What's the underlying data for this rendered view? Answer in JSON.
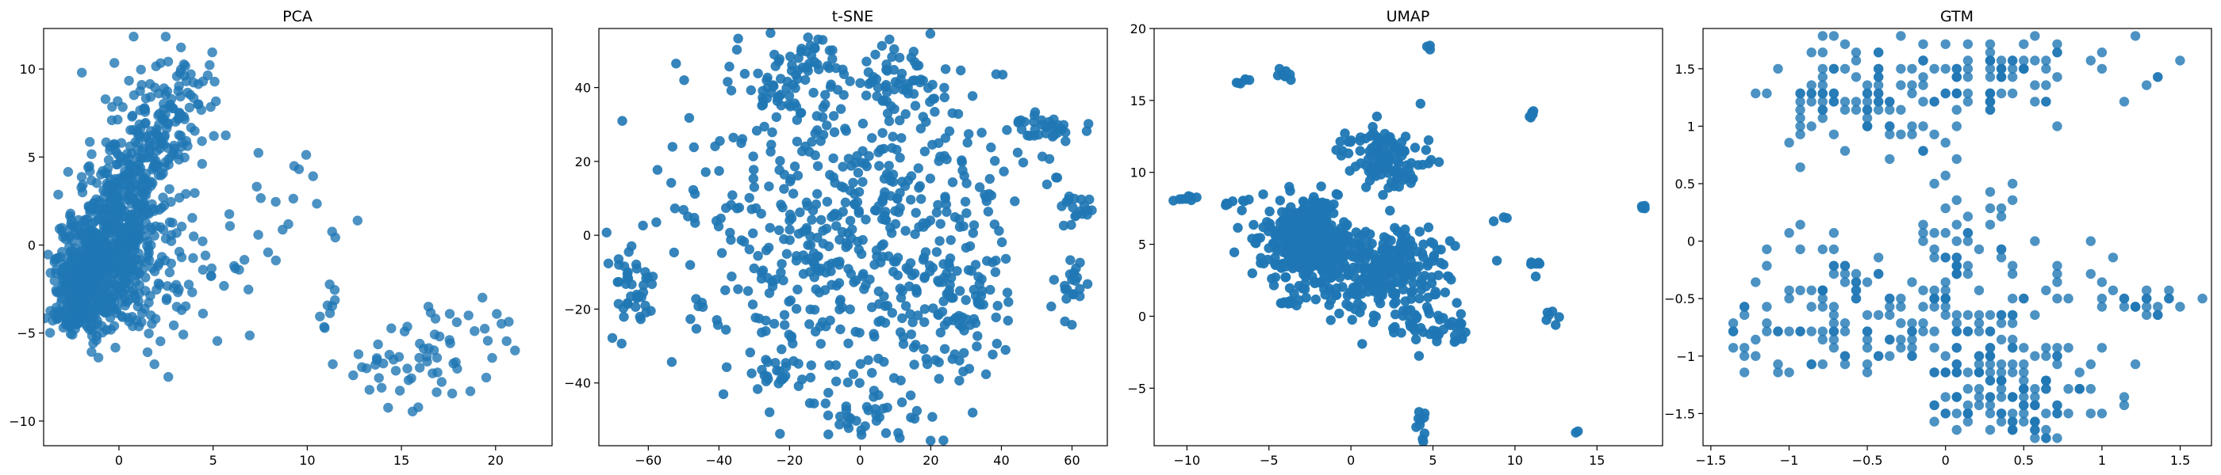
{
  "figure": {
    "point_color": "#1f77b4"
  },
  "chart_data": [
    {
      "type": "scatter",
      "title": "PCA",
      "xlabel": "",
      "ylabel": "",
      "xlim": [
        -4,
        23
      ],
      "ylim": [
        -11.4,
        12.3
      ],
      "xticks": [
        0,
        5,
        10,
        15,
        20
      ],
      "yticks": [
        -10,
        -5,
        0,
        5,
        10
      ],
      "point_opacity": 0.8,
      "clusters": [
        {
          "x": -1.5,
          "y": -1.5,
          "sx": 0.9,
          "sy": 1.6,
          "n": 520
        },
        {
          "x": 0.2,
          "y": 1.5,
          "sx": 1.0,
          "sy": 2.0,
          "n": 260
        },
        {
          "x": 1.5,
          "y": 4.5,
          "sx": 1.1,
          "sy": 2.0,
          "n": 150
        },
        {
          "x": 3.0,
          "y": 8.0,
          "sx": 1.3,
          "sy": 1.6,
          "n": 80
        },
        {
          "x": -2.5,
          "y": -4.0,
          "sx": 0.6,
          "sy": 0.5,
          "n": 60
        },
        {
          "x": 1.5,
          "y": -2.0,
          "sx": 1.4,
          "sy": 2.0,
          "n": 70
        },
        {
          "x": 5.0,
          "y": -1.0,
          "sx": 2.0,
          "sy": 2.0,
          "n": 30
        },
        {
          "x": 9.5,
          "y": 3.5,
          "sx": 1.5,
          "sy": 2.0,
          "n": 14
        },
        {
          "x": 11.0,
          "y": -4.5,
          "sx": 0.6,
          "sy": 1.0,
          "n": 10
        },
        {
          "x": 14.5,
          "y": -7.5,
          "sx": 1.3,
          "sy": 1.3,
          "n": 30
        },
        {
          "x": 17.5,
          "y": -5.5,
          "sx": 1.3,
          "sy": 1.6,
          "n": 28
        },
        {
          "x": 20.5,
          "y": -4.5,
          "sx": 0.7,
          "sy": 1.0,
          "n": 8
        }
      ]
    },
    {
      "type": "scatter",
      "title": "t-SNE",
      "xlabel": "",
      "ylabel": "",
      "xlim": [
        -74,
        70
      ],
      "ylim": [
        -57,
        56
      ],
      "xticks": [
        -60,
        -40,
        -20,
        0,
        20,
        40,
        60
      ],
      "yticks": [
        -40,
        -20,
        0,
        20,
        40
      ],
      "point_opacity": 0.9,
      "clusters": [
        {
          "x": -2,
          "y": 0,
          "sx": 24,
          "sy": 23,
          "n": 560
        },
        {
          "x": -22,
          "y": 40,
          "sx": 8,
          "sy": 6,
          "n": 50
        },
        {
          "x": 12,
          "y": 40,
          "sx": 7,
          "sy": 6,
          "n": 45
        },
        {
          "x": -15,
          "y": 48,
          "sx": 5,
          "sy": 2,
          "n": 20
        },
        {
          "x": 53,
          "y": 29,
          "sx": 6,
          "sy": 2,
          "n": 35
        },
        {
          "x": 62,
          "y": 8,
          "sx": 2,
          "sy": 2,
          "n": 15
        },
        {
          "x": -65,
          "y": -15,
          "sx": 3,
          "sy": 5,
          "n": 40
        },
        {
          "x": 60,
          "y": -15,
          "sx": 3,
          "sy": 5,
          "n": 20
        },
        {
          "x": 0,
          "y": -48,
          "sx": 8,
          "sy": 4,
          "n": 35
        },
        {
          "x": -22,
          "y": -38,
          "sx": 5,
          "sy": 3,
          "n": 20
        },
        {
          "x": 28,
          "y": -20,
          "sx": 8,
          "sy": 10,
          "n": 60
        }
      ]
    },
    {
      "type": "scatter",
      "title": "UMAP",
      "xlabel": "",
      "ylabel": "",
      "xlim": [
        -12,
        19
      ],
      "ylim": [
        -9,
        20
      ],
      "xticks": [
        -10,
        -5,
        0,
        5,
        10,
        15
      ],
      "yticks": [
        -5,
        0,
        5,
        10,
        15,
        20
      ],
      "point_opacity": 0.95,
      "clusters": [
        {
          "x": -2.5,
          "y": 5.0,
          "sx": 1.3,
          "sy": 1.5,
          "n": 450
        },
        {
          "x": 2.0,
          "y": 3.0,
          "sx": 2.0,
          "sy": 1.5,
          "n": 250
        },
        {
          "x": 2.0,
          "y": 11.0,
          "sx": 1.2,
          "sy": 1.2,
          "n": 120
        },
        {
          "x": 4.5,
          "y": -0.5,
          "sx": 1.2,
          "sy": 0.8,
          "n": 40
        },
        {
          "x": -10.0,
          "y": 8.2,
          "sx": 0.4,
          "sy": 0.1,
          "n": 8
        },
        {
          "x": -6.5,
          "y": 16.3,
          "sx": 0.25,
          "sy": 0.15,
          "n": 6
        },
        {
          "x": -4.0,
          "y": 16.8,
          "sx": 0.3,
          "sy": 0.2,
          "n": 8
        },
        {
          "x": 4.8,
          "y": 18.6,
          "sx": 0.1,
          "sy": 0.1,
          "n": 3
        },
        {
          "x": 11.0,
          "y": 14.0,
          "sx": 0.2,
          "sy": 0.2,
          "n": 5
        },
        {
          "x": 17.8,
          "y": 7.6,
          "sx": 0.1,
          "sy": 0.1,
          "n": 4
        },
        {
          "x": 12.0,
          "y": 0.0,
          "sx": 0.3,
          "sy": 0.3,
          "n": 6
        },
        {
          "x": 4.3,
          "y": -7.5,
          "sx": 0.2,
          "sy": 0.8,
          "n": 10
        },
        {
          "x": 13.8,
          "y": -8.0,
          "sx": 0.05,
          "sy": 0.05,
          "n": 2
        },
        {
          "x": -4.0,
          "y": 1.0,
          "sx": 0.3,
          "sy": 0.2,
          "n": 10
        },
        {
          "x": 6.5,
          "y": -1.0,
          "sx": 0.4,
          "sy": 0.4,
          "n": 10
        },
        {
          "x": 11.2,
          "y": 3.8,
          "sx": 0.2,
          "sy": 0.5,
          "n": 6
        },
        {
          "x": -7.0,
          "y": 8.0,
          "sx": 0.5,
          "sy": 0.4,
          "n": 8
        },
        {
          "x": 9.2,
          "y": 6.8,
          "sx": 0.2,
          "sy": 0.2,
          "n": 3
        }
      ]
    },
    {
      "type": "scatter",
      "title": "GTM",
      "xlabel": "",
      "ylabel": "",
      "xlim": [
        -1.55,
        1.7
      ],
      "ylim": [
        -1.78,
        1.85
      ],
      "xticks": [
        -1.5,
        -1.0,
        -0.5,
        0.0,
        0.5,
        1.0,
        1.5
      ],
      "yticks": [
        -1.5,
        -1.0,
        -0.5,
        0.0,
        0.5,
        1.0,
        1.5
      ],
      "point_opacity": 0.8,
      "grid_step": 0.0714,
      "clusters": [
        {
          "x": -0.6,
          "y": 1.2,
          "sx": 0.28,
          "sy": 0.25,
          "n": 90
        },
        {
          "x": 0.3,
          "y": 1.45,
          "sx": 0.4,
          "sy": 0.2,
          "n": 90
        },
        {
          "x": -0.7,
          "y": -0.6,
          "sx": 0.3,
          "sy": 0.3,
          "n": 90
        },
        {
          "x": 0.55,
          "y": -1.35,
          "sx": 0.3,
          "sy": 0.22,
          "n": 110
        },
        {
          "x": 0.1,
          "y": -0.9,
          "sx": 0.25,
          "sy": 0.3,
          "n": 60
        },
        {
          "x": 0.1,
          "y": 0.0,
          "sx": 0.2,
          "sy": 0.4,
          "n": 50
        },
        {
          "x": 1.3,
          "y": -0.55,
          "sx": 0.14,
          "sy": 0.06,
          "n": 20
        },
        {
          "x": -1.2,
          "y": -0.85,
          "sx": 0.15,
          "sy": 0.15,
          "n": 15
        },
        {
          "x": 0.6,
          "y": -0.5,
          "sx": 0.3,
          "sy": 0.3,
          "n": 30
        }
      ]
    }
  ]
}
